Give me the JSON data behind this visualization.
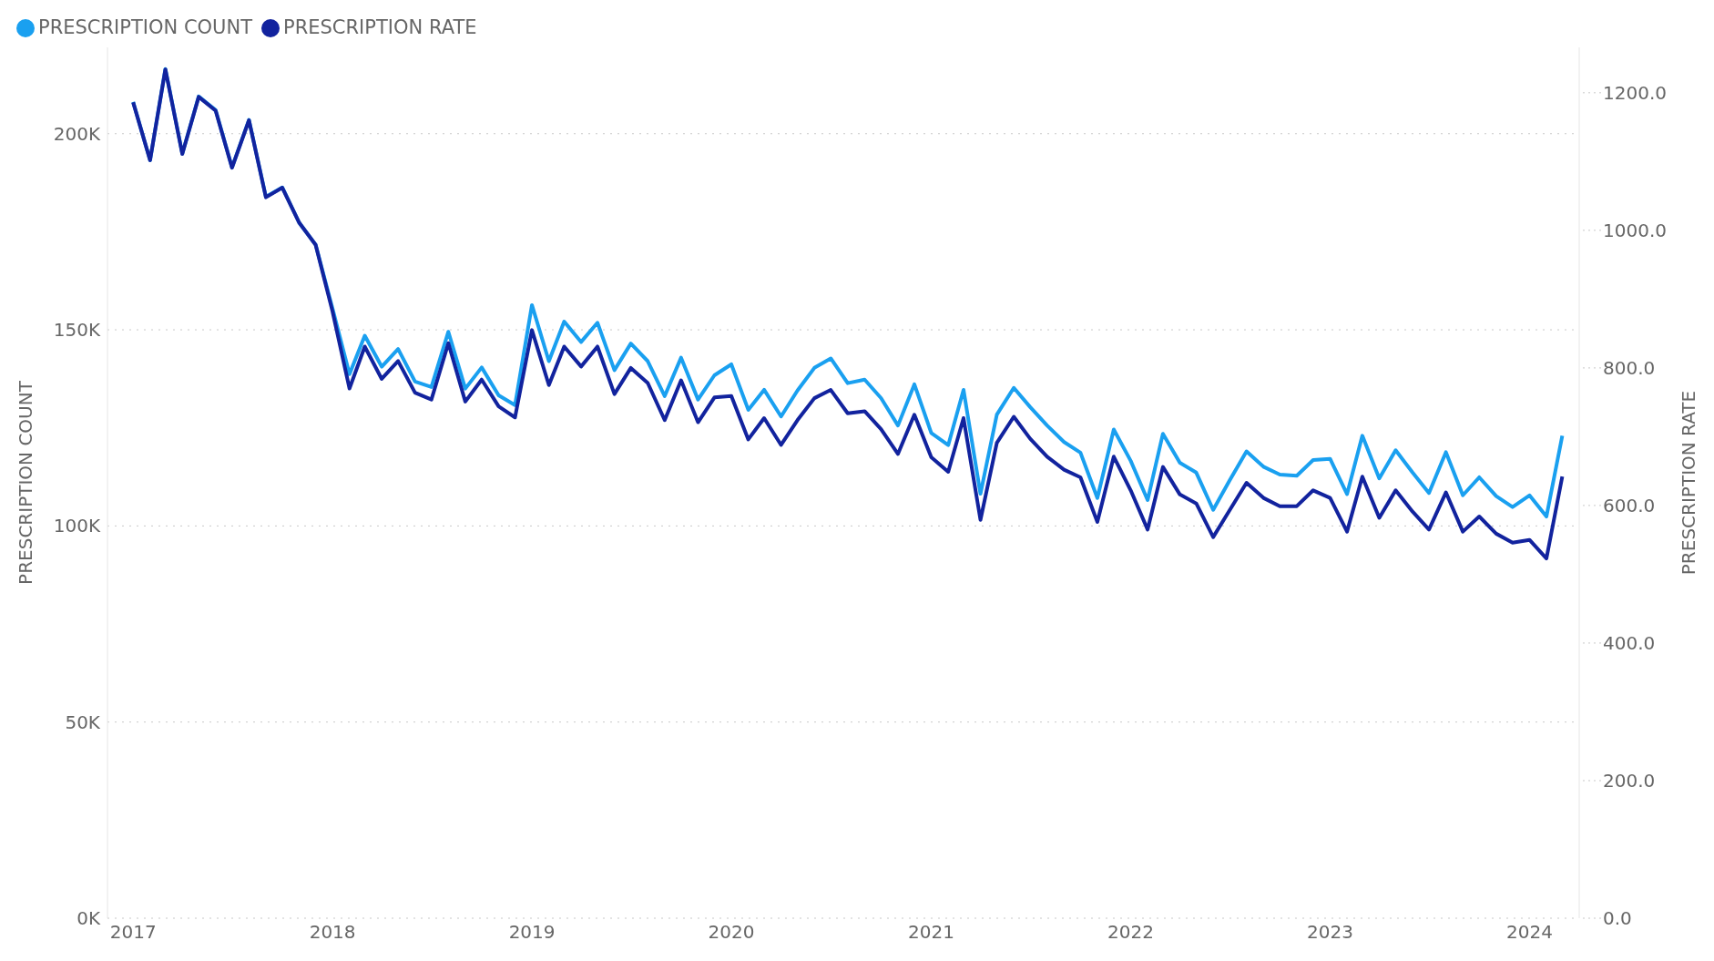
{
  "chart_data": {
    "type": "line",
    "xlabel": null,
    "ylabel": "PRESCRIPTION COUNT",
    "y2label": "PRESCRIPTION RATE",
    "x": [
      "2017-01",
      "2017-02",
      "2017-03",
      "2017-04",
      "2017-05",
      "2017-06",
      "2017-07",
      "2017-08",
      "2017-09",
      "2017-10",
      "2017-11",
      "2017-12",
      "2018-01",
      "2018-02",
      "2018-03",
      "2018-04",
      "2018-05",
      "2018-06",
      "2018-07",
      "2018-08",
      "2018-09",
      "2018-10",
      "2018-11",
      "2018-12",
      "2019-01",
      "2019-02",
      "2019-03",
      "2019-04",
      "2019-05",
      "2019-06",
      "2019-07",
      "2019-08",
      "2019-09",
      "2019-10",
      "2019-11",
      "2019-12",
      "2020-01",
      "2020-02",
      "2020-03",
      "2020-04",
      "2020-05",
      "2020-06",
      "2020-07",
      "2020-08",
      "2020-09",
      "2020-10",
      "2020-11",
      "2020-12",
      "2021-01",
      "2021-02",
      "2021-03",
      "2021-04",
      "2021-05",
      "2021-06",
      "2021-07",
      "2021-08",
      "2021-09",
      "2021-10",
      "2021-11",
      "2021-12",
      "2022-01",
      "2022-02",
      "2022-03",
      "2022-04",
      "2022-05",
      "2022-06",
      "2022-07",
      "2022-08",
      "2022-09",
      "2022-10",
      "2022-11",
      "2022-12",
      "2023-01",
      "2023-02",
      "2023-03",
      "2023-04",
      "2023-05",
      "2023-06",
      "2023-07",
      "2023-08",
      "2023-09",
      "2023-10",
      "2023-11",
      "2023-12",
      "2024-01",
      "2024-02",
      "2024-03"
    ],
    "series": [
      {
        "name": "PRESCRIPTION COUNT",
        "color": "#1aa0f0",
        "values": [
          208100,
          193200,
          216500,
          194900,
          209500,
          206000,
          191400,
          203500,
          183900,
          186300,
          177300,
          171700,
          155400,
          138700,
          148500,
          140600,
          145100,
          136800,
          135400,
          149500,
          135000,
          140400,
          133300,
          130800,
          156300,
          142000,
          152100,
          146900,
          151800,
          139700,
          146500,
          142000,
          133100,
          142900,
          132200,
          138400,
          141200,
          129600,
          134700,
          127900,
          134500,
          140300,
          142700,
          136400,
          137300,
          132600,
          125600,
          136100,
          123700,
          120600,
          134700,
          108200,
          128400,
          135200,
          130300,
          125600,
          121400,
          118700,
          107100,
          124600,
          116600,
          106600,
          123500,
          116100,
          113600,
          104100,
          111600,
          119000,
          115100,
          113100,
          112800,
          116800,
          117100,
          108100,
          123000,
          112100,
          119300,
          113600,
          108400,
          118800,
          107800,
          112400,
          107600,
          104800,
          107800,
          102400,
          123000
        ]
      },
      {
        "name": "PRESCRIPTION RATE",
        "color": "#12239e",
        "axis": "y2",
        "values": [
          1186,
          1102,
          1234,
          1111,
          1194,
          1174,
          1091,
          1160,
          1048,
          1062,
          1011,
          979,
          882,
          770,
          831,
          784,
          810,
          764,
          754,
          836,
          751,
          783,
          744,
          728,
          855,
          775,
          831,
          802,
          831,
          762,
          800,
          778,
          724,
          782,
          721,
          757,
          759,
          696,
          727,
          688,
          724,
          756,
          768,
          734,
          737,
          711,
          675,
          732,
          670,
          649,
          727,
          579,
          691,
          729,
          697,
          671,
          652,
          641,
          576,
          671,
          622,
          565,
          656,
          616,
          603,
          554,
          593,
          633,
          611,
          599,
          599,
          622,
          611,
          562,
          642,
          582,
          622,
          591,
          565,
          619,
          562,
          584,
          559,
          546,
          550,
          523,
          642
        ]
      }
    ],
    "xlim": [
      "2016-11-15",
      "2024-04-01"
    ],
    "xticks": [
      {
        "value": "2017-01",
        "label": "2017"
      },
      {
        "value": "2018-01",
        "label": "2018"
      },
      {
        "value": "2019-01",
        "label": "2019"
      },
      {
        "value": "2020-01",
        "label": "2020"
      },
      {
        "value": "2021-01",
        "label": "2021"
      },
      {
        "value": "2022-01",
        "label": "2022"
      },
      {
        "value": "2023-01",
        "label": "2023"
      },
      {
        "value": "2024-01",
        "label": "2024"
      }
    ],
    "ylim": [
      0,
      222000
    ],
    "yticks": [
      {
        "value": 0,
        "label": "0K"
      },
      {
        "value": 50000,
        "label": "50K"
      },
      {
        "value": 100000,
        "label": "100K"
      },
      {
        "value": 150000,
        "label": "150K"
      },
      {
        "value": 200000,
        "label": "200K"
      }
    ],
    "y2lim": [
      0,
      1266
    ],
    "y2ticks": [
      {
        "value": 0,
        "label": "0.0"
      },
      {
        "value": 200,
        "label": "200.0"
      },
      {
        "value": 400,
        "label": "400.0"
      },
      {
        "value": 600,
        "label": "600.0"
      },
      {
        "value": 800,
        "label": "800.0"
      },
      {
        "value": 1000,
        "label": "1000.0"
      },
      {
        "value": 1200,
        "label": "1200.0"
      }
    ],
    "grid": "y",
    "legend": "top left",
    "marker": "none",
    "line_style": "solid"
  }
}
